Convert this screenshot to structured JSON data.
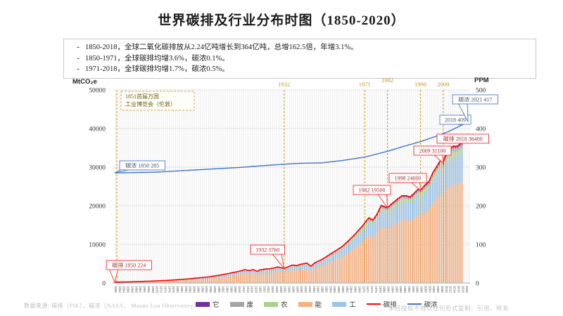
{
  "page": {
    "title": "世界碳排及行业分布时图（1850-2020）",
    "bullet_marker": "-",
    "bullets": [
      "1850-2018，全球二氧化碳排放从2.24亿吨增长到364亿吨，总增162.5倍，年增3.1%。",
      "1850-1971，全球碳排均增3.6%，碳浓0.1%。",
      "1971-2018，全球碳排均增1.7%，碳浓0.5%。"
    ],
    "footer_left": "数据来源: 碳排（PIK）、碳浓（NASA、 Mauna Loa Observatory）",
    "footer_right": "未经授权不得以任何形式复制、引用、转发"
  },
  "chart_data": {
    "type": "combo: stacked-bar (sector emissions) + line (total emissions, left axis) + line (CO2 concentration, right axis)",
    "title": "世界碳排及行业分布时图（1850-2020）",
    "x_axis": {
      "start_year": 1850,
      "end_year": 2021,
      "tick_step": 2
    },
    "left_axis": {
      "label": "MtCO₂e",
      "ticks": [
        0,
        10000,
        20000,
        30000,
        40000,
        50000
      ],
      "max": 50000
    },
    "right_axis": {
      "label": "PPM",
      "ticks": [
        0,
        100,
        200,
        300,
        400,
        500
      ],
      "max": 500
    },
    "event_years": [
      {
        "year": 1851,
        "label": ""
      },
      {
        "year": 1932,
        "label": "1932"
      },
      {
        "year": 1971,
        "label": "1971"
      },
      {
        "year": 1982,
        "label": "1982"
      },
      {
        "year": 1998,
        "label": "1998"
      },
      {
        "year": 2009,
        "label": "2009"
      }
    ],
    "annotation": {
      "lines": [
        "1851首届万国",
        "工业博览会（伦敦）"
      ]
    },
    "emissions_mtco2e": [
      [
        1850,
        224
      ],
      [
        1855,
        270
      ],
      [
        1860,
        340
      ],
      [
        1865,
        430
      ],
      [
        1870,
        535
      ],
      [
        1875,
        660
      ],
      [
        1880,
        840
      ],
      [
        1885,
        1030
      ],
      [
        1890,
        1300
      ],
      [
        1895,
        1560
      ],
      [
        1900,
        1950
      ],
      [
        1905,
        2450
      ],
      [
        1910,
        3000
      ],
      [
        1913,
        3450
      ],
      [
        1915,
        3210
      ],
      [
        1917,
        3470
      ],
      [
        1919,
        3000
      ],
      [
        1920,
        3350
      ],
      [
        1923,
        3620
      ],
      [
        1925,
        3680
      ],
      [
        1927,
        3900
      ],
      [
        1929,
        4150
      ],
      [
        1932,
        3760
      ],
      [
        1936,
        4650
      ],
      [
        1938,
        4500
      ],
      [
        1940,
        4850
      ],
      [
        1943,
        5150
      ],
      [
        1945,
        4350
      ],
      [
        1947,
        5300
      ],
      [
        1950,
        6000
      ],
      [
        1955,
        7700
      ],
      [
        1960,
        9400
      ],
      [
        1965,
        11900
      ],
      [
        1970,
        14850
      ],
      [
        1973,
        16900
      ],
      [
        1975,
        16300
      ],
      [
        1977,
        17900
      ],
      [
        1979,
        20100
      ],
      [
        1982,
        19500
      ],
      [
        1984,
        20500
      ],
      [
        1987,
        21800
      ],
      [
        1989,
        22600
      ],
      [
        1991,
        22600
      ],
      [
        1993,
        22300
      ],
      [
        1995,
        23300
      ],
      [
        1997,
        24400
      ],
      [
        1998,
        24000
      ],
      [
        2000,
        25300
      ],
      [
        2002,
        26200
      ],
      [
        2004,
        28600
      ],
      [
        2006,
        30300
      ],
      [
        2008,
        32100
      ],
      [
        2009,
        31100
      ],
      [
        2010,
        33100
      ],
      [
        2011,
        34000
      ],
      [
        2012,
        34500
      ],
      [
        2013,
        35100
      ],
      [
        2014,
        35500
      ],
      [
        2015,
        35400
      ],
      [
        2016,
        35500
      ],
      [
        2017,
        36000
      ],
      [
        2018,
        36400
      ]
    ],
    "concentration_ppm": [
      [
        1850,
        285
      ],
      [
        1870,
        287
      ],
      [
        1890,
        293
      ],
      [
        1900,
        296
      ],
      [
        1910,
        299
      ],
      [
        1920,
        303
      ],
      [
        1930,
        307
      ],
      [
        1940,
        310
      ],
      [
        1950,
        311
      ],
      [
        1960,
        317
      ],
      [
        1971,
        326
      ],
      [
        1982,
        341
      ],
      [
        1990,
        354
      ],
      [
        1998,
        366
      ],
      [
        2005,
        379
      ],
      [
        2009,
        387
      ],
      [
        2012,
        393
      ],
      [
        2015,
        401
      ],
      [
        2018,
        409
      ],
      [
        2021,
        417
      ]
    ],
    "sector_stack": [
      {
        "name": "能",
        "color": "#F4B183",
        "share": 0.72
      },
      {
        "name": "工",
        "color": "#9DC3E6",
        "share": 0.2
      },
      {
        "name": "农",
        "color": "#A9D18E",
        "share": 0.04
      },
      {
        "name": "废",
        "color": "#A6A6A6",
        "share": 0.025
      },
      {
        "name": "它",
        "color": "#7030A0",
        "share": 0.015
      }
    ],
    "legend": [
      {
        "label": "它",
        "color": "#7030A0",
        "type": "area"
      },
      {
        "label": "废",
        "color": "#A6A6A6",
        "type": "area"
      },
      {
        "label": "农",
        "color": "#A9D18E",
        "type": "area"
      },
      {
        "label": "能",
        "color": "#F4B183",
        "type": "area"
      },
      {
        "label": "工",
        "color": "#9DC3E6",
        "type": "area"
      },
      {
        "label": "碳排",
        "color": "#FF0000",
        "type": "line"
      },
      {
        "label": "碳浓",
        "color": "#4472C4",
        "type": "line"
      }
    ],
    "callouts": [
      {
        "series": "conc",
        "year": 1850,
        "value": 285,
        "label": "碳浓 1850 285"
      },
      {
        "series": "emis",
        "year": 1850,
        "value": 224,
        "label": "碳排 1850 224"
      },
      {
        "series": "emis",
        "year": 1932,
        "value": 3760,
        "label": "1932 3760"
      },
      {
        "series": "emis",
        "year": 1982,
        "value": 19500,
        "label": "1982 19500"
      },
      {
        "series": "emis",
        "year": 1998,
        "value": 24000,
        "label": "1998 24000"
      },
      {
        "series": "emis",
        "year": 2009,
        "value": 31100,
        "label": "2009 31100"
      },
      {
        "series": "emis",
        "year": 2018,
        "value": 36400,
        "label": "碳排 2018 36400"
      },
      {
        "series": "conc",
        "year": 2018,
        "value": 409,
        "label": "2018 409"
      },
      {
        "series": "conc",
        "year": 2021,
        "value": 417,
        "label": "碳浓 2021 417"
      }
    ],
    "colors": {
      "emissions_line": "#FF0000",
      "concentration_line": "#4472C4",
      "event_line": "#D9A43B",
      "grid": "#EBEBEB",
      "callout_red_border": "#FF4040",
      "callout_red_text": "#A03030",
      "callout_blue_border": "#5B86C8",
      "callout_blue_text": "#44546A"
    }
  }
}
